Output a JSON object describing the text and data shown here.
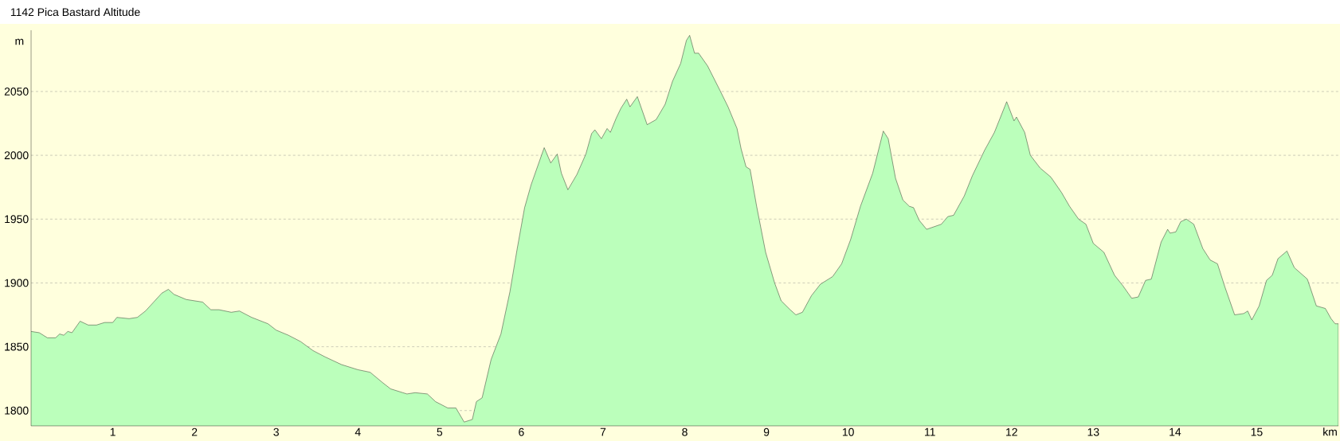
{
  "chart_data": {
    "type": "area",
    "title": "1142 Pica Bastard Altitude",
    "xlabel": "km",
    "ylabel": "m",
    "xlim": [
      0,
      16
    ],
    "ylim": [
      1788,
      2098
    ],
    "xticks": [
      1,
      2,
      3,
      4,
      5,
      6,
      7,
      8,
      9,
      10,
      11,
      12,
      13,
      14,
      15
    ],
    "yticks": [
      1800,
      1850,
      1900,
      1950,
      2000,
      2050
    ],
    "grid": "y",
    "series": [
      {
        "color": "#bbffbb",
        "x": [
          0,
          0.1,
          0.2,
          0.3,
          0.35,
          0.4,
          0.45,
          0.5,
          0.6,
          0.7,
          0.8,
          0.9,
          1.0,
          1.05,
          1.2,
          1.3,
          1.4,
          1.5,
          1.6,
          1.68,
          1.75,
          1.9,
          2.1,
          2.2,
          2.3,
          2.45,
          2.55,
          2.7,
          2.9,
          3.0,
          3.15,
          3.3,
          3.45,
          3.6,
          3.8,
          4.0,
          4.15,
          4.3,
          4.4,
          4.55,
          4.6,
          4.7,
          4.85,
          4.95,
          5.1,
          5.2,
          5.3,
          5.4,
          5.45,
          5.52,
          5.63,
          5.75,
          5.86,
          5.95,
          6.04,
          6.12,
          6.28,
          6.36,
          6.44,
          6.49,
          6.57,
          6.68,
          6.79,
          6.86,
          6.9,
          6.98,
          7.05,
          7.09,
          7.16,
          7.22,
          7.29,
          7.33,
          7.42,
          7.54,
          7.65,
          7.76,
          7.85,
          7.95,
          8.02,
          8.06,
          8.12,
          8.17,
          8.28,
          8.43,
          8.53,
          8.64,
          8.69,
          8.75,
          8.8,
          8.88,
          8.99,
          9.1,
          9.18,
          9.29,
          9.36,
          9.44,
          9.55,
          9.66,
          9.81,
          9.92,
          10.03,
          10.15,
          10.3,
          10.43,
          10.49,
          10.58,
          10.67,
          10.75,
          10.8,
          10.87,
          10.96,
          11.14,
          11.22,
          11.29,
          11.42,
          11.52,
          11.67,
          11.79,
          11.94,
          12.03,
          12.06,
          12.16,
          12.23,
          12.35,
          12.48,
          12.61,
          12.71,
          12.82,
          12.91,
          13.0,
          13.13,
          13.26,
          13.36,
          13.47,
          13.55,
          13.64,
          13.71,
          13.83,
          13.91,
          13.94,
          14.01,
          14.07,
          14.14,
          14.23,
          14.34,
          14.43,
          14.52,
          14.61,
          14.73,
          14.84,
          14.89,
          14.94,
          15.03,
          15.12,
          15.19,
          15.26,
          15.37,
          15.46,
          15.62,
          15.73,
          15.84,
          15.91,
          15.96,
          16.0
        ],
        "values": [
          1862,
          1861,
          1857,
          1857,
          1860,
          1859,
          1862,
          1861,
          1870,
          1867,
          1867,
          1869,
          1869,
          1873,
          1872,
          1873,
          1878,
          1885,
          1892,
          1895,
          1891,
          1887,
          1885,
          1879,
          1879,
          1877,
          1878,
          1873,
          1868,
          1863,
          1859,
          1854,
          1847,
          1842,
          1836,
          1832,
          1830,
          1822,
          1817,
          1814,
          1813,
          1814,
          1813,
          1807,
          1802,
          1802,
          1791,
          1793,
          1807,
          1810,
          1840,
          1860,
          1893,
          1927,
          1959,
          1977,
          2006,
          1994,
          2001,
          1986,
          1973,
          1985,
          2001,
          2017,
          2020,
          2013,
          2021,
          2018,
          2029,
          2037,
          2044,
          2038,
          2046,
          2024,
          2028,
          2040,
          2058,
          2072,
          2090,
          2094,
          2080,
          2080,
          2070,
          2051,
          2038,
          2021,
          2005,
          1991,
          1989,
          1960,
          1924,
          1900,
          1886,
          1879,
          1875,
          1877,
          1890,
          1899,
          1905,
          1915,
          1934,
          1960,
          1986,
          2019,
          2013,
          1982,
          1965,
          1960,
          1959,
          1949,
          1942,
          1946,
          1952,
          1953,
          1968,
          1984,
          2004,
          2018,
          2042,
          2027,
          2030,
          2018,
          2000,
          1990,
          1983,
          1971,
          1960,
          1950,
          1946,
          1931,
          1924,
          1906,
          1898,
          1888,
          1889,
          1902,
          1903,
          1932,
          1942,
          1939,
          1940,
          1948,
          1950,
          1946,
          1927,
          1918,
          1915,
          1897,
          1875,
          1876,
          1878,
          1871,
          1882,
          1902,
          1906,
          1919,
          1925,
          1912,
          1903,
          1882,
          1880,
          1872,
          1868,
          1868
        ]
      }
    ]
  }
}
